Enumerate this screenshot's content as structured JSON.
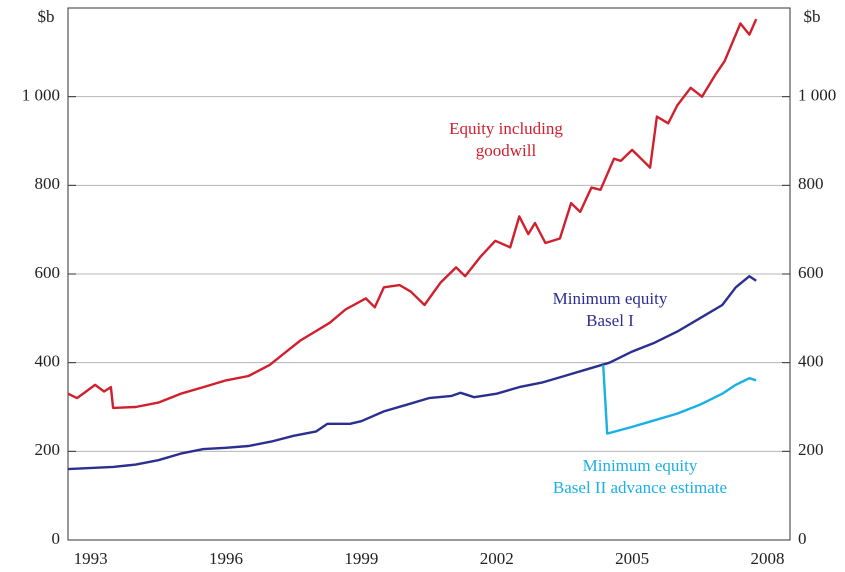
{
  "chart_data": {
    "type": "line",
    "ylabel": "$b",
    "y2label": "$b",
    "xlim": [
      1992.5,
      2008.5
    ],
    "xticks": [
      1993,
      1996,
      1999,
      2002,
      2005,
      2008
    ],
    "ylim": [
      0,
      1200
    ],
    "yticks": [
      0,
      200,
      400,
      600,
      800,
      {
        "value": 1000,
        "label": "1 000"
      }
    ],
    "y2lim": [
      0,
      1200
    ],
    "y2ticks": [
      0,
      200,
      400,
      600,
      800,
      {
        "value": 1000,
        "label": "1 000"
      }
    ],
    "grid": true,
    "series": [
      {
        "name": "Equity including goodwill",
        "color": "#d0202e",
        "x": [
          1992.5,
          1992.7,
          1992.9,
          1993.1,
          1993.3,
          1993.45,
          1993.5,
          1994.0,
          1994.5,
          1995.0,
          1995.5,
          1996.0,
          1996.5,
          1996.97,
          1997.4,
          1997.65,
          1998.3,
          1998.65,
          1999.1,
          1999.3,
          1999.5,
          1999.85,
          2000.1,
          2000.4,
          2000.75,
          2001.1,
          2001.3,
          2001.65,
          2001.97,
          2002.3,
          2002.5,
          2002.7,
          2002.85,
          2003.08,
          2003.4,
          2003.65,
          2003.85,
          2004.1,
          2004.3,
          2004.6,
          2004.75,
          2005.0,
          2005.2,
          2005.4,
          2005.55,
          2005.8,
          2006.0,
          2006.3,
          2006.55,
          2006.85,
          2007.05,
          2007.4,
          2007.6,
          2007.75
        ],
        "values": [
          330,
          320,
          335,
          350,
          335,
          345,
          298,
          300,
          310,
          330,
          345,
          360,
          370,
          395,
          430,
          450,
          490,
          520,
          545,
          525,
          570,
          575,
          560,
          530,
          580,
          615,
          595,
          640,
          675,
          660,
          730,
          690,
          715,
          670,
          680,
          760,
          740,
          795,
          790,
          860,
          855,
          880,
          860,
          840,
          955,
          940,
          980,
          1020,
          1000,
          1050,
          1080,
          1165,
          1140,
          1175
        ]
      },
      {
        "name": "Minimum equity Basel I",
        "color": "#2b2f8f",
        "x": [
          1992.5,
          1993.5,
          1994.0,
          1994.5,
          1995.0,
          1995.5,
          1996.0,
          1996.5,
          1997.0,
          1997.5,
          1998.0,
          1998.25,
          1998.75,
          1999.0,
          1999.5,
          2000.0,
          2000.5,
          2001.0,
          2001.2,
          2001.5,
          2002.0,
          2002.5,
          2003.0,
          2003.5,
          2004.0,
          2004.5,
          2005.0,
          2005.5,
          2006.0,
          2006.5,
          2007.0,
          2007.3,
          2007.6,
          2007.75
        ],
        "values": [
          160,
          165,
          170,
          180,
          195,
          205,
          208,
          212,
          222,
          235,
          245,
          262,
          262,
          268,
          290,
          305,
          320,
          325,
          332,
          322,
          330,
          345,
          355,
          370,
          385,
          400,
          425,
          445,
          470,
          500,
          530,
          570,
          595,
          585
        ]
      },
      {
        "name": "Minimum equity Basel II advance estimate",
        "color": "#1ab0e6",
        "x": [
          2004.36,
          2004.45,
          2005.0,
          2005.5,
          2006.0,
          2006.5,
          2007.0,
          2007.3,
          2007.6,
          2007.75
        ],
        "values": [
          395,
          240,
          255,
          270,
          285,
          305,
          330,
          350,
          365,
          360
        ]
      }
    ],
    "annotations": [
      {
        "lines": [
          "Equity including",
          "goodwill"
        ],
        "color": "#d0202e"
      },
      {
        "lines": [
          "Minimum equity",
          "Basel I"
        ],
        "color": "#2b2f8f"
      },
      {
        "lines": [
          "Minimum equity",
          "Basel II advance estimate"
        ],
        "color": "#1ab0e6"
      }
    ]
  }
}
